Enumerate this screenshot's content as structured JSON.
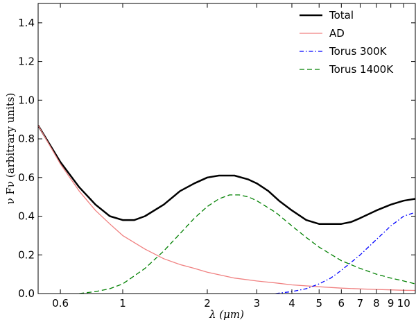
{
  "chart_data": {
    "type": "line",
    "title": "",
    "xlabel": "λ (μm)",
    "ylabel": "ν Fν (arbitrary units)",
    "xscale": "log",
    "xlim": [
      0.5,
      11
    ],
    "ylim": [
      0,
      1.5
    ],
    "grid": false,
    "legend_position": "top-right",
    "x_ticks": [
      0.6,
      1,
      2,
      3,
      4,
      5,
      6,
      7,
      8,
      9,
      10
    ],
    "x_tick_labels": [
      "0.6",
      "1",
      "2",
      "3",
      "4",
      "5",
      "6",
      "7",
      "8",
      "9",
      "10"
    ],
    "y_ticks": [
      0.0,
      0.2,
      0.4,
      0.6,
      0.8,
      1.0,
      1.2,
      1.4
    ],
    "y_tick_labels": [
      "0.0",
      "0.2",
      "0.4",
      "0.6",
      "0.8",
      "1.0",
      "1.2",
      "1.4"
    ],
    "series": [
      {
        "name": "Total",
        "color": "#000000",
        "style": "solid",
        "x": [
          0.5,
          0.6,
          0.7,
          0.8,
          0.9,
          1.0,
          1.1,
          1.2,
          1.4,
          1.6,
          1.8,
          2.0,
          2.2,
          2.5,
          2.8,
          3.0,
          3.3,
          3.6,
          4.0,
          4.5,
          5.0,
          5.5,
          6.0,
          6.5,
          7.0,
          8.0,
          9.0,
          10.0,
          11.0
        ],
        "y": [
          0.87,
          0.68,
          0.55,
          0.46,
          0.4,
          0.38,
          0.38,
          0.4,
          0.46,
          0.53,
          0.57,
          0.6,
          0.61,
          0.61,
          0.59,
          0.57,
          0.53,
          0.48,
          0.43,
          0.38,
          0.36,
          0.36,
          0.36,
          0.37,
          0.39,
          0.43,
          0.46,
          0.48,
          0.49
        ]
      },
      {
        "name": "AD",
        "color": "#f08080",
        "style": "solid",
        "x": [
          0.5,
          0.6,
          0.7,
          0.8,
          0.9,
          1.0,
          1.2,
          1.4,
          1.6,
          1.8,
          2.0,
          2.5,
          3.0,
          3.5,
          4.0,
          5.0,
          6.0,
          7.0,
          8.0,
          9.0,
          10.0,
          11.0
        ],
        "y": [
          0.87,
          0.67,
          0.53,
          0.43,
          0.36,
          0.3,
          0.23,
          0.18,
          0.15,
          0.13,
          0.11,
          0.08,
          0.065,
          0.055,
          0.045,
          0.035,
          0.028,
          0.024,
          0.021,
          0.019,
          0.017,
          0.016
        ]
      },
      {
        "name": "Torus 300K",
        "color": "#0000ff",
        "style": "dashdot",
        "x": [
          3.5,
          4.0,
          4.5,
          5.0,
          5.5,
          6.0,
          7.0,
          8.0,
          9.0,
          10.0,
          11.0
        ],
        "y": [
          0.0,
          0.01,
          0.025,
          0.05,
          0.08,
          0.12,
          0.2,
          0.28,
          0.35,
          0.4,
          0.42
        ]
      },
      {
        "name": "Torus 1400K",
        "color": "#008000",
        "style": "dashed",
        "x": [
          0.7,
          0.8,
          0.9,
          1.0,
          1.2,
          1.4,
          1.6,
          1.8,
          2.0,
          2.2,
          2.4,
          2.6,
          2.8,
          3.0,
          3.5,
          4.0,
          4.5,
          5.0,
          6.0,
          7.0,
          8.0,
          9.0,
          10.0,
          11.0
        ],
        "y": [
          0.0,
          0.01,
          0.025,
          0.05,
          0.13,
          0.22,
          0.31,
          0.39,
          0.45,
          0.49,
          0.51,
          0.51,
          0.5,
          0.48,
          0.42,
          0.35,
          0.29,
          0.24,
          0.17,
          0.13,
          0.1,
          0.08,
          0.065,
          0.05
        ]
      }
    ]
  }
}
